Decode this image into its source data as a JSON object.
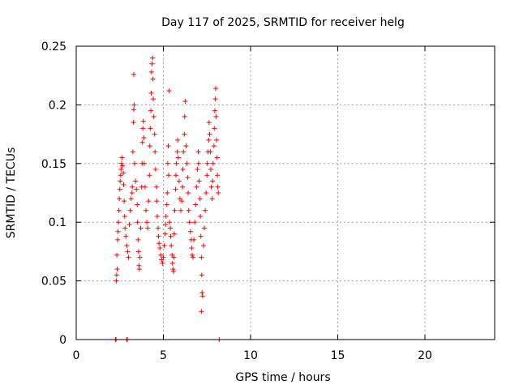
{
  "chart_data": {
    "type": "scatter",
    "title": "Day 117 of 2025, SRMTID for receiver helg",
    "xlabel": "GPS time / hours",
    "ylabel": "SRMTID / TECUs",
    "xlim": [
      0,
      24
    ],
    "ylim": [
      0,
      0.25
    ],
    "xticks": [
      0,
      5,
      10,
      15,
      20
    ],
    "xtick_labels": [
      "0",
      "5",
      "10",
      "15",
      "20"
    ],
    "yticks": [
      0,
      0.05,
      0.1,
      0.15,
      0.2,
      0.25
    ],
    "ytick_labels": [
      "0",
      "0.05",
      "0.1",
      "0.15",
      "0.2",
      "0.25"
    ],
    "grid": true,
    "marker": "+",
    "color": "#ff0000",
    "series": [
      {
        "name": "SRMTID",
        "points": [
          [
            2.25,
            0.0
          ],
          [
            2.28,
            0.0
          ],
          [
            2.9,
            0.0
          ],
          [
            2.93,
            0.0
          ],
          [
            8.2,
            0.0
          ],
          [
            2.3,
            0.05
          ],
          [
            2.32,
            0.055
          ],
          [
            2.35,
            0.06
          ],
          [
            2.33,
            0.072
          ],
          [
            2.38,
            0.085
          ],
          [
            2.4,
            0.092
          ],
          [
            2.42,
            0.1
          ],
          [
            2.45,
            0.11
          ],
          [
            2.47,
            0.12
          ],
          [
            2.5,
            0.128
          ],
          [
            2.52,
            0.135
          ],
          [
            2.55,
            0.14
          ],
          [
            2.57,
            0.145
          ],
          [
            2.6,
            0.15
          ],
          [
            2.62,
            0.155
          ],
          [
            2.65,
            0.148
          ],
          [
            2.7,
            0.142
          ],
          [
            2.72,
            0.132
          ],
          [
            2.75,
            0.118
          ],
          [
            2.78,
            0.105
          ],
          [
            2.8,
            0.095
          ],
          [
            2.85,
            0.088
          ],
          [
            2.9,
            0.08
          ],
          [
            2.95,
            0.075
          ],
          [
            3.0,
            0.07
          ],
          [
            3.05,
            0.098
          ],
          [
            3.1,
            0.11
          ],
          [
            3.15,
            0.12
          ],
          [
            3.2,
            0.125
          ],
          [
            3.22,
            0.13
          ],
          [
            3.25,
            0.16
          ],
          [
            3.28,
            0.185
          ],
          [
            3.3,
            0.196
          ],
          [
            3.32,
            0.2
          ],
          [
            3.3,
            0.226
          ],
          [
            3.35,
            0.15
          ],
          [
            3.4,
            0.135
          ],
          [
            3.45,
            0.128
          ],
          [
            3.5,
            0.115
          ],
          [
            3.52,
            0.1
          ],
          [
            3.55,
            0.085
          ],
          [
            3.58,
            0.075
          ],
          [
            3.6,
            0.063
          ],
          [
            3.62,
            0.06
          ],
          [
            3.65,
            0.07
          ],
          [
            3.7,
            0.095
          ],
          [
            3.75,
            0.13
          ],
          [
            3.78,
            0.15
          ],
          [
            3.8,
            0.168
          ],
          [
            3.82,
            0.18
          ],
          [
            3.85,
            0.186
          ],
          [
            3.88,
            0.172
          ],
          [
            3.9,
            0.15
          ],
          [
            3.95,
            0.13
          ],
          [
            4.0,
            0.11
          ],
          [
            4.05,
            0.1
          ],
          [
            4.1,
            0.095
          ],
          [
            4.15,
            0.118
          ],
          [
            4.2,
            0.14
          ],
          [
            4.22,
            0.165
          ],
          [
            4.25,
            0.18
          ],
          [
            4.28,
            0.195
          ],
          [
            4.3,
            0.21
          ],
          [
            4.32,
            0.228
          ],
          [
            4.35,
            0.235
          ],
          [
            4.38,
            0.24
          ],
          [
            4.4,
            0.222
          ],
          [
            4.42,
            0.205
          ],
          [
            4.45,
            0.19
          ],
          [
            4.5,
            0.175
          ],
          [
            4.52,
            0.16
          ],
          [
            4.55,
            0.145
          ],
          [
            4.6,
            0.13
          ],
          [
            4.62,
            0.118
          ],
          [
            4.65,
            0.105
          ],
          [
            4.7,
            0.095
          ],
          [
            4.72,
            0.088
          ],
          [
            4.75,
            0.082
          ],
          [
            4.8,
            0.078
          ],
          [
            4.85,
            0.072
          ],
          [
            4.9,
            0.068
          ],
          [
            4.95,
            0.065
          ],
          [
            5.0,
            0.07
          ],
          [
            5.05,
            0.08
          ],
          [
            5.1,
            0.09
          ],
          [
            5.12,
            0.098
          ],
          [
            5.15,
            0.105
          ],
          [
            5.2,
            0.115
          ],
          [
            5.22,
            0.125
          ],
          [
            5.25,
            0.15
          ],
          [
            5.28,
            0.165
          ],
          [
            5.3,
            0.14
          ],
          [
            5.32,
            0.212
          ],
          [
            5.35,
            0.1
          ],
          [
            5.4,
            0.095
          ],
          [
            5.42,
            0.088
          ],
          [
            5.45,
            0.08
          ],
          [
            5.5,
            0.072
          ],
          [
            5.52,
            0.065
          ],
          [
            5.55,
            0.06
          ],
          [
            5.58,
            0.058
          ],
          [
            5.6,
            0.07
          ],
          [
            5.62,
            0.09
          ],
          [
            5.65,
            0.11
          ],
          [
            5.7,
            0.128
          ],
          [
            5.72,
            0.14
          ],
          [
            5.75,
            0.15
          ],
          [
            5.8,
            0.16
          ],
          [
            5.82,
            0.17
          ],
          [
            5.85,
            0.155
          ],
          [
            5.9,
            0.135
          ],
          [
            5.95,
            0.12
          ],
          [
            6.0,
            0.11
          ],
          [
            6.05,
            0.118
          ],
          [
            6.1,
            0.13
          ],
          [
            6.12,
            0.145
          ],
          [
            6.15,
            0.16
          ],
          [
            6.2,
            0.175
          ],
          [
            6.22,
            0.19
          ],
          [
            6.25,
            0.203
          ],
          [
            6.3,
            0.165
          ],
          [
            6.35,
            0.15
          ],
          [
            6.4,
            0.138
          ],
          [
            6.42,
            0.125
          ],
          [
            6.45,
            0.11
          ],
          [
            6.5,
            0.1
          ],
          [
            6.55,
            0.092
          ],
          [
            6.6,
            0.085
          ],
          [
            6.62,
            0.078
          ],
          [
            6.65,
            0.072
          ],
          [
            6.7,
            0.07
          ],
          [
            6.75,
            0.085
          ],
          [
            6.8,
            0.1
          ],
          [
            6.85,
            0.115
          ],
          [
            6.9,
            0.13
          ],
          [
            6.95,
            0.145
          ],
          [
            7.0,
            0.16
          ],
          [
            7.02,
            0.15
          ],
          [
            7.05,
            0.135
          ],
          [
            7.1,
            0.12
          ],
          [
            7.12,
            0.105
          ],
          [
            7.15,
            0.088
          ],
          [
            7.18,
            0.07
          ],
          [
            7.2,
            0.055
          ],
          [
            7.22,
            0.04
          ],
          [
            7.25,
            0.037
          ],
          [
            7.18,
            0.024
          ],
          [
            7.3,
            0.08
          ],
          [
            7.35,
            0.095
          ],
          [
            7.4,
            0.11
          ],
          [
            7.45,
            0.125
          ],
          [
            7.5,
            0.14
          ],
          [
            7.52,
            0.15
          ],
          [
            7.55,
            0.16
          ],
          [
            7.6,
            0.17
          ],
          [
            7.62,
            0.185
          ],
          [
            7.65,
            0.175
          ],
          [
            7.7,
            0.16
          ],
          [
            7.72,
            0.145
          ],
          [
            7.75,
            0.13
          ],
          [
            7.8,
            0.12
          ],
          [
            7.82,
            0.135
          ],
          [
            7.85,
            0.15
          ],
          [
            7.9,
            0.165
          ],
          [
            7.92,
            0.18
          ],
          [
            7.95,
            0.195
          ],
          [
            7.98,
            0.205
          ],
          [
            8.0,
            0.214
          ],
          [
            8.02,
            0.19
          ],
          [
            8.05,
            0.17
          ],
          [
            8.08,
            0.155
          ],
          [
            8.1,
            0.14
          ],
          [
            8.12,
            0.13
          ],
          [
            8.15,
            0.125
          ]
        ]
      }
    ]
  }
}
